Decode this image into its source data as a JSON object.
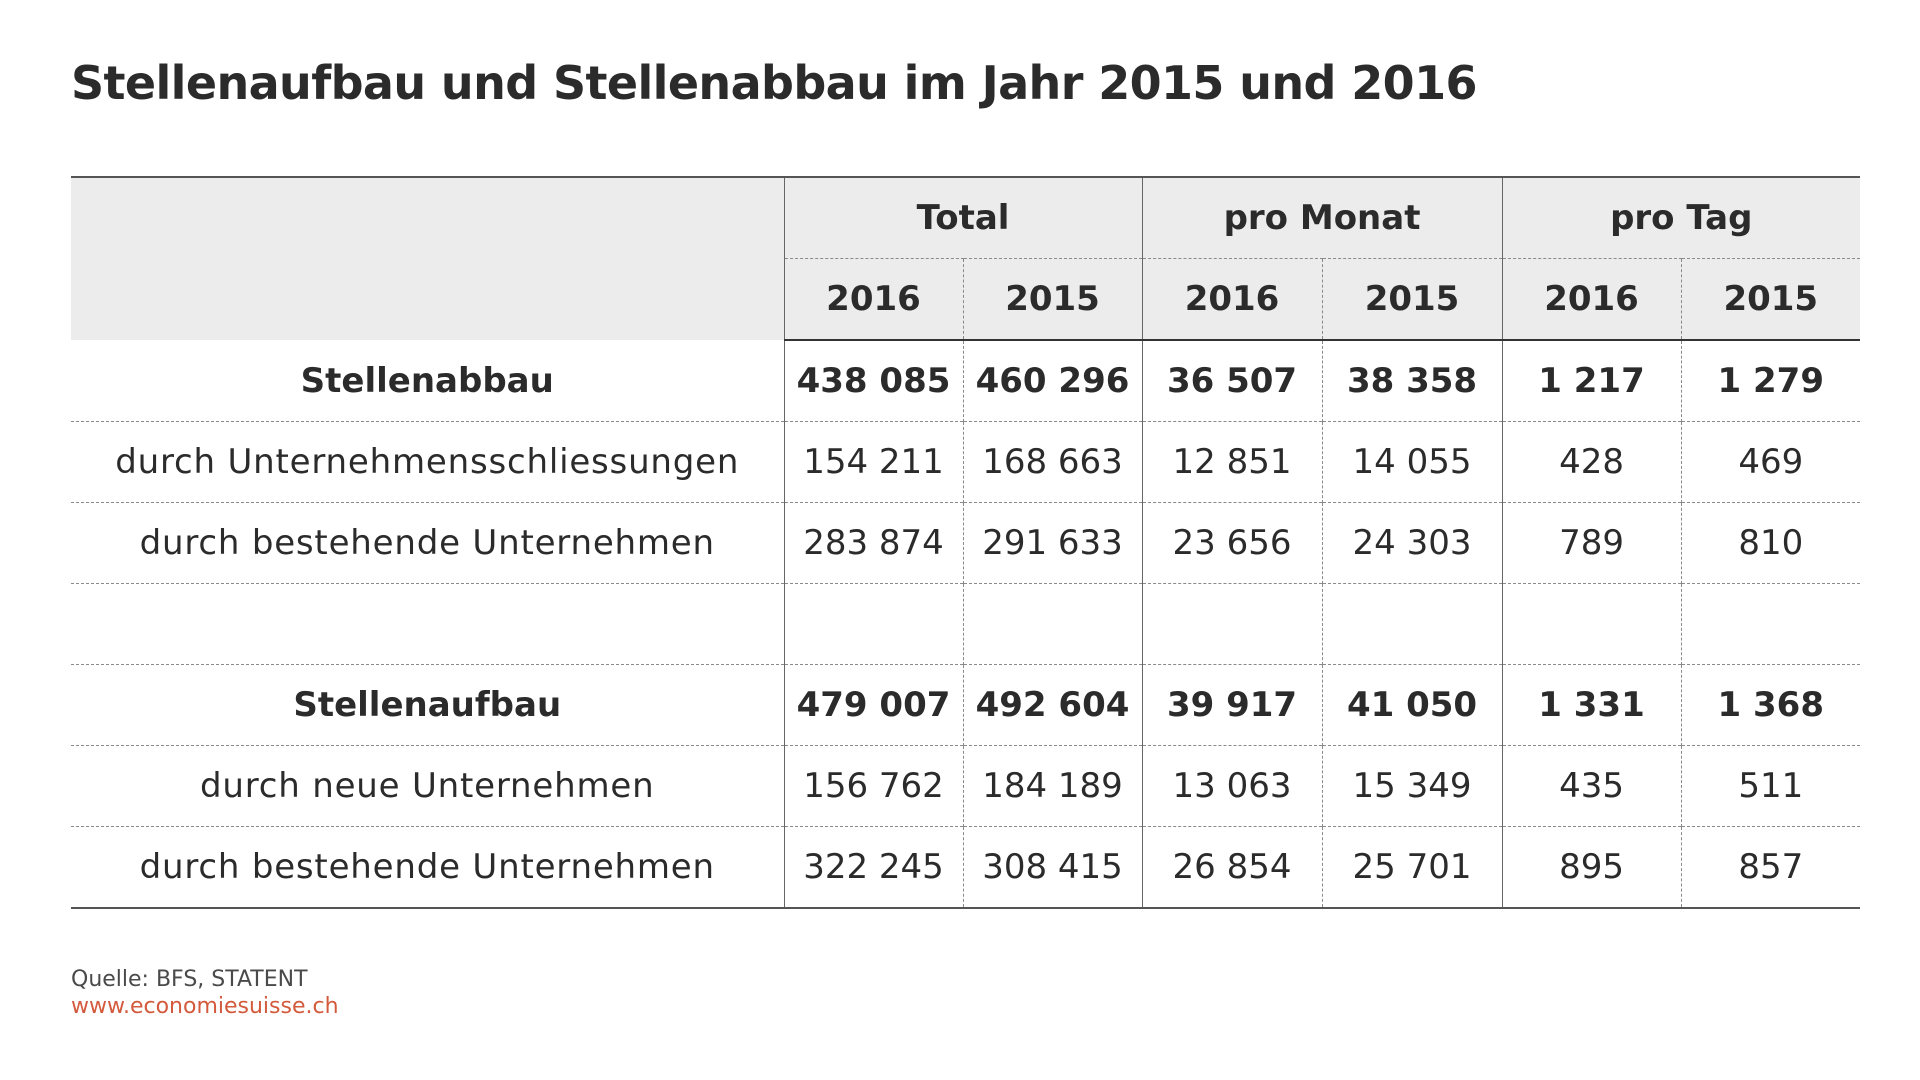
{
  "title": "Stellenaufbau und Stellenabbau im Jahr 2015 und 2016",
  "groups": [
    "Total",
    "pro Monat",
    "pro Tag"
  ],
  "years": [
    "2016",
    "2015",
    "2016",
    "2015",
    "2016",
    "2015"
  ],
  "rows": [
    {
      "label": "Stellenabbau",
      "bold": true,
      "values": [
        "438 085",
        "460 296",
        "36 507",
        "38 358",
        "1 217",
        "1 279"
      ]
    },
    {
      "label": "durch Unternehmensschliessungen",
      "bold": false,
      "values": [
        "154 211",
        "168 663",
        "12 851",
        "14 055",
        "428",
        "469"
      ]
    },
    {
      "label": "durch bestehende Unternehmen",
      "bold": false,
      "values": [
        "283 874",
        "291 633",
        "23 656",
        "24 303",
        "789",
        "810"
      ]
    },
    {
      "label": "",
      "bold": false,
      "values": [
        "",
        "",
        "",
        "",
        "",
        ""
      ]
    },
    {
      "label": "Stellenaufbau",
      "bold": true,
      "values": [
        "479 007",
        "492 604",
        "39 917",
        "41 050",
        "1 331",
        "1 368"
      ]
    },
    {
      "label": "durch neue Unternehmen",
      "bold": false,
      "values": [
        "156 762",
        "184 189",
        "13 063",
        "15 349",
        "435",
        "511"
      ]
    },
    {
      "label": "durch bestehende Unternehmen",
      "bold": false,
      "values": [
        "322 245",
        "308 415",
        "26 854",
        "25 701",
        "895",
        "857"
      ]
    }
  ],
  "source": "Quelle: BFS, STATENT",
  "website": "www.economiesuisse.ch",
  "colors": {
    "text": "#2b2b2b",
    "header_bg": "#ececec",
    "link": "#d35a3c"
  }
}
